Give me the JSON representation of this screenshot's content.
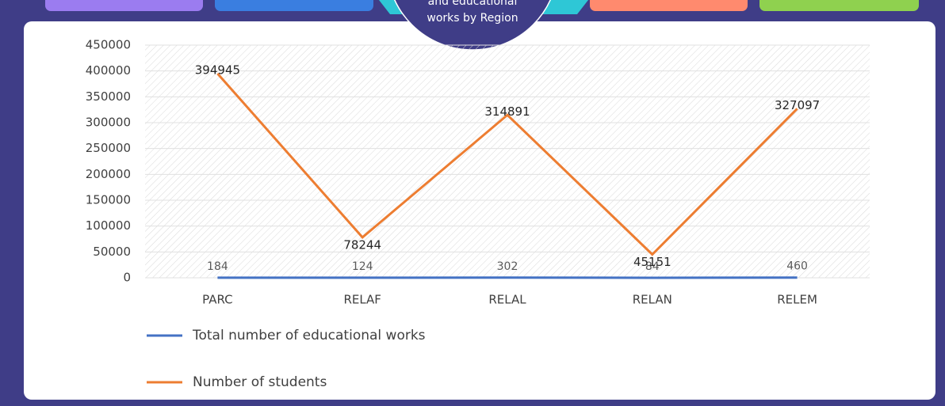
{
  "chart_data": {
    "type": "line",
    "title_lines": [
      "and educational",
      "works by Region"
    ],
    "categories": [
      "PARC",
      "RELAF",
      "RELAL",
      "RELAN",
      "RELEM"
    ],
    "series": [
      {
        "name": "Total number of educational works",
        "color": "#4472c4",
        "values": [
          184,
          124,
          302,
          84,
          460
        ]
      },
      {
        "name": "Number of students",
        "color": "#ed7d31",
        "values": [
          394945,
          78244,
          314891,
          45151,
          327097
        ]
      }
    ],
    "ylim": [
      0,
      450000
    ],
    "yticks": [
      0,
      50000,
      100000,
      150000,
      200000,
      250000,
      300000,
      350000,
      400000,
      450000
    ],
    "grid": true,
    "legend": "bottom-left"
  }
}
